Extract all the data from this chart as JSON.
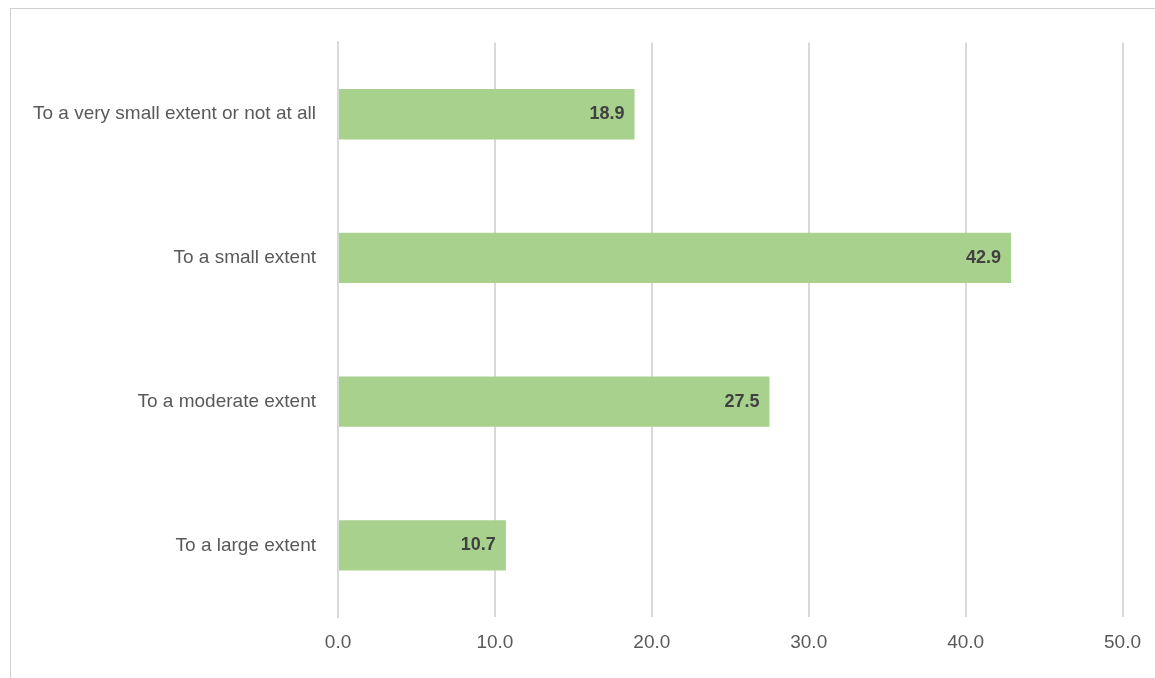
{
  "chart_data": {
    "type": "bar",
    "orientation": "horizontal",
    "categories": [
      "To a very small extent or not at all",
      "To a small extent",
      "To a moderate extent",
      "To a large extent"
    ],
    "values": [
      18.9,
      42.9,
      27.5,
      10.7
    ],
    "color": "#a9d18e",
    "xlim": [
      0,
      50
    ],
    "xticks": [
      {
        "value": 0,
        "label": "0.0"
      },
      {
        "value": 10,
        "label": "10.0"
      },
      {
        "value": 20,
        "label": "20.0"
      },
      {
        "value": 30,
        "label": "30.0"
      },
      {
        "value": 40,
        "label": "40.0"
      },
      {
        "value": 50,
        "label": "50.0"
      }
    ],
    "grid": "x",
    "legend": false,
    "data_labels": true
  }
}
